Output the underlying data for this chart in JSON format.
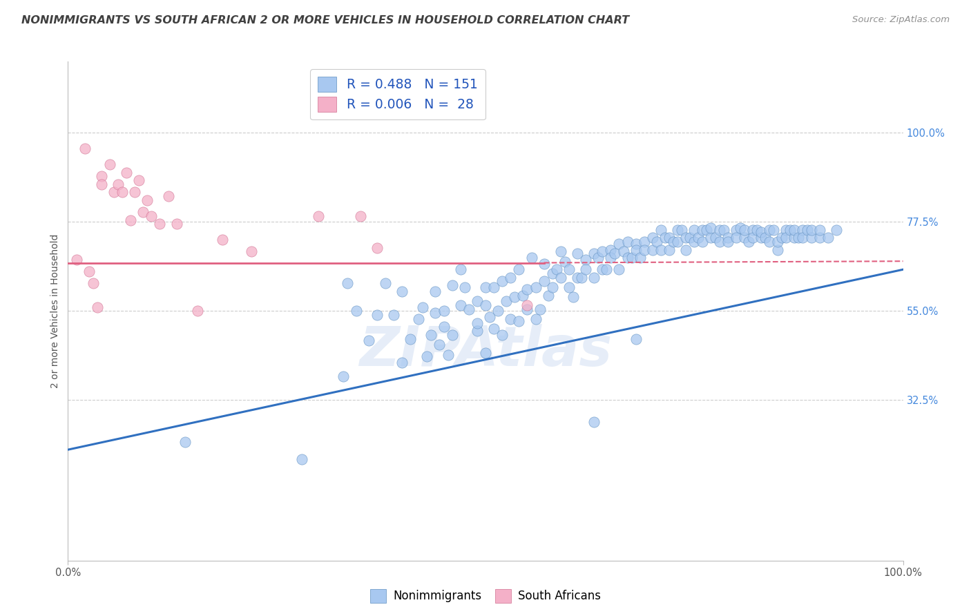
{
  "title": "NONIMMIGRANTS VS SOUTH AFRICAN 2 OR MORE VEHICLES IN HOUSEHOLD CORRELATION CHART",
  "source": "Source: ZipAtlas.com",
  "ylabel": "2 or more Vehicles in Household",
  "xmin": 0.0,
  "xmax": 1.0,
  "ymin": -0.08,
  "ymax": 1.18,
  "y_tick_values_right": [
    1.0,
    0.775,
    0.55,
    0.325
  ],
  "y_tick_labels_right": [
    "100.0%",
    "77.5%",
    "55.0%",
    "32.5%"
  ],
  "blue_color": "#a8c8f0",
  "pink_color": "#f4b0c8",
  "line_blue_color": "#3070c0",
  "line_pink_color": "#e06080",
  "right_label_color": "#4488dd",
  "title_color": "#404040",
  "source_color": "#909090",
  "background_color": "#ffffff",
  "grid_color": "#cccccc",
  "watermark": "ZIPAtlas",
  "blue_line_x0": 0.0,
  "blue_line_y0": 0.2,
  "blue_line_x1": 1.0,
  "blue_line_y1": 0.655,
  "pink_line_x0": 0.0,
  "pink_line_y0": 0.672,
  "pink_line_x1": 0.57,
  "pink_line_y1": 0.672,
  "pink_line_dash_x0": 0.57,
  "pink_line_dash_y0": 0.672,
  "pink_line_dash_x1": 1.0,
  "pink_line_dash_y1": 0.676,
  "blue_scatter_x": [
    0.14,
    0.28,
    0.33,
    0.335,
    0.345,
    0.36,
    0.37,
    0.38,
    0.39,
    0.4,
    0.4,
    0.41,
    0.42,
    0.425,
    0.43,
    0.435,
    0.44,
    0.44,
    0.445,
    0.45,
    0.45,
    0.455,
    0.46,
    0.46,
    0.47,
    0.47,
    0.475,
    0.48,
    0.49,
    0.49,
    0.49,
    0.5,
    0.5,
    0.5,
    0.505,
    0.51,
    0.51,
    0.515,
    0.52,
    0.52,
    0.525,
    0.53,
    0.53,
    0.535,
    0.54,
    0.54,
    0.545,
    0.55,
    0.55,
    0.555,
    0.56,
    0.56,
    0.565,
    0.57,
    0.57,
    0.575,
    0.58,
    0.58,
    0.585,
    0.59,
    0.59,
    0.595,
    0.6,
    0.6,
    0.605,
    0.61,
    0.61,
    0.615,
    0.62,
    0.62,
    0.63,
    0.63,
    0.635,
    0.64,
    0.64,
    0.645,
    0.65,
    0.65,
    0.655,
    0.66,
    0.66,
    0.665,
    0.67,
    0.67,
    0.675,
    0.68,
    0.68,
    0.685,
    0.69,
    0.69,
    0.7,
    0.7,
    0.705,
    0.71,
    0.71,
    0.715,
    0.72,
    0.72,
    0.725,
    0.73,
    0.73,
    0.735,
    0.74,
    0.74,
    0.745,
    0.75,
    0.75,
    0.755,
    0.76,
    0.76,
    0.765,
    0.77,
    0.77,
    0.775,
    0.78,
    0.78,
    0.785,
    0.79,
    0.79,
    0.8,
    0.8,
    0.805,
    0.81,
    0.81,
    0.815,
    0.82,
    0.82,
    0.825,
    0.83,
    0.83,
    0.835,
    0.84,
    0.84,
    0.845,
    0.85,
    0.85,
    0.855,
    0.86,
    0.86,
    0.865,
    0.87,
    0.87,
    0.875,
    0.88,
    0.88,
    0.885,
    0.89,
    0.89,
    0.9,
    0.9,
    0.91,
    0.92,
    0.63,
    0.68
  ],
  "blue_scatter_y": [
    0.22,
    0.175,
    0.385,
    0.62,
    0.55,
    0.475,
    0.54,
    0.62,
    0.54,
    0.6,
    0.42,
    0.48,
    0.53,
    0.56,
    0.435,
    0.49,
    0.545,
    0.6,
    0.465,
    0.51,
    0.55,
    0.44,
    0.49,
    0.615,
    0.655,
    0.565,
    0.61,
    0.555,
    0.5,
    0.575,
    0.52,
    0.565,
    0.61,
    0.445,
    0.535,
    0.61,
    0.505,
    0.55,
    0.625,
    0.49,
    0.575,
    0.635,
    0.53,
    0.585,
    0.655,
    0.525,
    0.59,
    0.555,
    0.605,
    0.685,
    0.53,
    0.61,
    0.555,
    0.625,
    0.67,
    0.59,
    0.645,
    0.61,
    0.655,
    0.7,
    0.635,
    0.675,
    0.61,
    0.655,
    0.585,
    0.635,
    0.695,
    0.635,
    0.68,
    0.655,
    0.695,
    0.635,
    0.685,
    0.655,
    0.7,
    0.655,
    0.705,
    0.685,
    0.695,
    0.72,
    0.655,
    0.7,
    0.685,
    0.725,
    0.685,
    0.72,
    0.705,
    0.685,
    0.725,
    0.705,
    0.735,
    0.705,
    0.725,
    0.755,
    0.705,
    0.735,
    0.705,
    0.735,
    0.725,
    0.755,
    0.725,
    0.755,
    0.735,
    0.705,
    0.735,
    0.725,
    0.755,
    0.735,
    0.755,
    0.725,
    0.755,
    0.735,
    0.76,
    0.735,
    0.755,
    0.725,
    0.755,
    0.735,
    0.725,
    0.755,
    0.735,
    0.76,
    0.735,
    0.755,
    0.725,
    0.755,
    0.735,
    0.755,
    0.735,
    0.75,
    0.735,
    0.755,
    0.725,
    0.755,
    0.705,
    0.725,
    0.735,
    0.755,
    0.735,
    0.755,
    0.735,
    0.755,
    0.735,
    0.755,
    0.735,
    0.755,
    0.735,
    0.755,
    0.735,
    0.755,
    0.735,
    0.755,
    0.27,
    0.48
  ],
  "pink_scatter_x": [
    0.02,
    0.04,
    0.04,
    0.05,
    0.055,
    0.06,
    0.065,
    0.07,
    0.075,
    0.08,
    0.085,
    0.09,
    0.095,
    0.1,
    0.11,
    0.12,
    0.13,
    0.155,
    0.185,
    0.22,
    0.3,
    0.35,
    0.37,
    0.55,
    0.01,
    0.025,
    0.03,
    0.035
  ],
  "pink_scatter_y": [
    0.96,
    0.89,
    0.87,
    0.92,
    0.85,
    0.87,
    0.85,
    0.9,
    0.78,
    0.85,
    0.88,
    0.8,
    0.83,
    0.79,
    0.77,
    0.84,
    0.77,
    0.55,
    0.73,
    0.7,
    0.79,
    0.79,
    0.71,
    0.565,
    0.68,
    0.65,
    0.62,
    0.56
  ]
}
